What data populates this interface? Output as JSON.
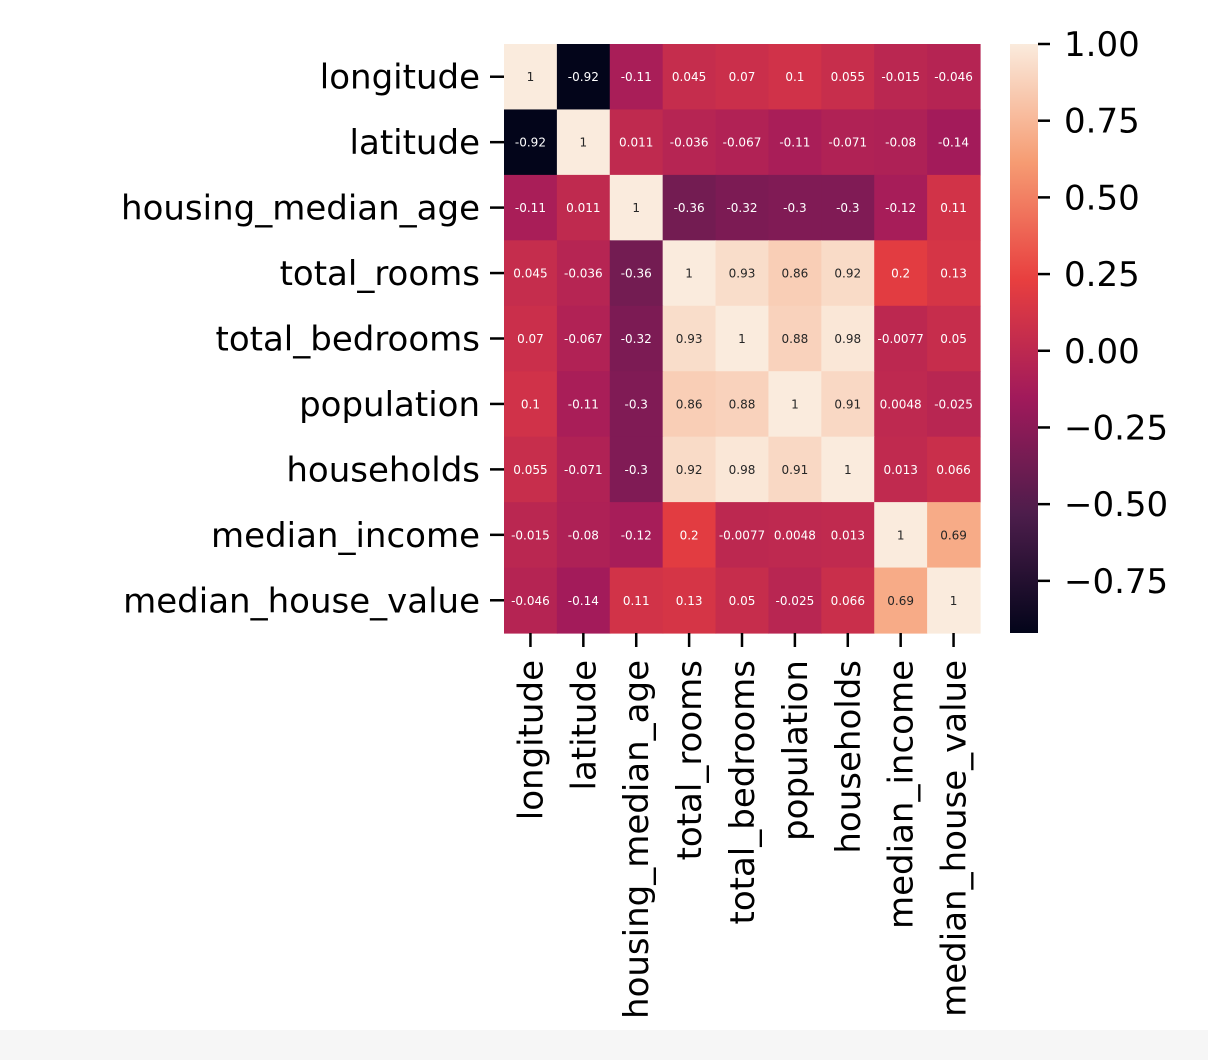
{
  "chart_data": {
    "type": "heatmap",
    "title": "",
    "xlabel": "",
    "ylabel": "",
    "rows": [
      "longitude",
      "latitude",
      "housing_median_age",
      "total_rooms",
      "total_bedrooms",
      "population",
      "households",
      "median_income",
      "median_house_value"
    ],
    "cols": [
      "longitude",
      "latitude",
      "housing_median_age",
      "total_rooms",
      "total_bedrooms",
      "population",
      "households",
      "median_income",
      "median_house_value"
    ],
    "cell_labels": [
      [
        "1",
        "-0.92",
        "-0.11",
        "0.045",
        "0.07",
        "0.1",
        "0.055",
        "-0.015",
        "-0.046"
      ],
      [
        "-0.92",
        "1",
        "0.011",
        "-0.036",
        "-0.067",
        "-0.11",
        "-0.071",
        "-0.08",
        "-0.14"
      ],
      [
        "-0.11",
        "0.011",
        "1",
        "-0.36",
        "-0.32",
        "-0.3",
        "-0.3",
        "-0.12",
        "0.11"
      ],
      [
        "0.045",
        "-0.036",
        "-0.36",
        "1",
        "0.93",
        "0.86",
        "0.92",
        "0.2",
        "0.13"
      ],
      [
        "0.07",
        "-0.067",
        "-0.32",
        "0.93",
        "1",
        "0.88",
        "0.98",
        "-0.0077",
        "0.05"
      ],
      [
        "0.1",
        "-0.11",
        "-0.3",
        "0.86",
        "0.88",
        "1",
        "0.91",
        "0.0048",
        "-0.025"
      ],
      [
        "0.055",
        "-0.071",
        "-0.3",
        "0.92",
        "0.98",
        "0.91",
        "1",
        "0.013",
        "0.066"
      ],
      [
        "-0.015",
        "-0.08",
        "-0.12",
        "0.2",
        "-0.0077",
        "0.0048",
        "0.013",
        "1",
        "0.69"
      ],
      [
        "-0.046",
        "-0.14",
        "0.11",
        "0.13",
        "0.05",
        "-0.025",
        "0.066",
        "0.69",
        "1"
      ]
    ],
    "vmin": -0.92,
    "vmax": 1.0,
    "colorbar": {
      "ticks": [
        1.0,
        0.75,
        0.5,
        0.25,
        0.0,
        -0.25,
        -0.5,
        -0.75
      ],
      "tick_labels": [
        "1.00",
        "0.75",
        "0.50",
        "0.25",
        "0.00",
        "−0.25",
        "−0.50",
        "−0.75"
      ]
    },
    "colormap": "rocket",
    "colormap_stops": [
      "#03051a",
      "#4c1d4b",
      "#a11a5b",
      "#e83f3f",
      "#f69c73",
      "#faebdd"
    ],
    "annotations_on": true,
    "grid": false,
    "legend": "colorbar-right"
  }
}
